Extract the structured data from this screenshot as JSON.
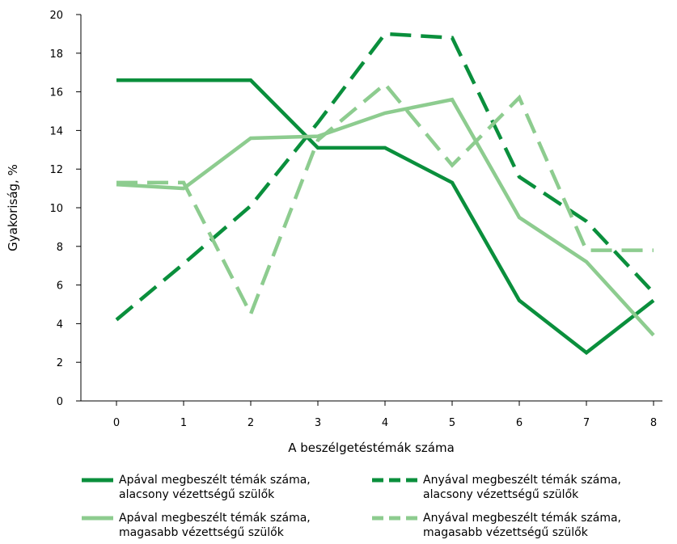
{
  "chart_data": {
    "type": "line",
    "x": [
      0,
      1,
      2,
      3,
      4,
      5,
      6,
      7,
      8
    ],
    "xlabel": "A beszélgetéstémák száma",
    "ylabel": "Gyakoriság, %",
    "ylim": [
      0,
      20
    ],
    "yticks": [
      0,
      2,
      4,
      6,
      8,
      10,
      12,
      14,
      16,
      18,
      20
    ],
    "grid": false,
    "legend_position": "bottom",
    "series": [
      {
        "name_line1": "Apával megbeszélt témák száma,",
        "name_line2": "alacsony vézettségű szülők",
        "values": [
          16.6,
          16.6,
          16.6,
          13.1,
          13.1,
          11.3,
          5.2,
          2.5,
          5.2
        ],
        "color": "#0a8f3c",
        "dash": "solid"
      },
      {
        "name_line1": "Anyával megbeszélt témák száma,",
        "name_line2": "alacsony vézettségű szülők",
        "values": [
          4.2,
          7.1,
          10.1,
          14.4,
          19.0,
          18.8,
          11.6,
          9.3,
          5.6
        ],
        "color": "#0a8f3c",
        "dash": "dashed"
      },
      {
        "name_line1": "Apával megbeszélt témák száma,",
        "name_line2": "magasabb vézettségű szülők",
        "values": [
          11.2,
          11.0,
          13.6,
          13.7,
          14.9,
          15.6,
          9.5,
          7.2,
          3.4
        ],
        "color": "#8dcc8f",
        "dash": "solid"
      },
      {
        "name_line1": "Anyával megbeszélt témák száma,",
        "name_line2": "magasabb vézettségű szülők",
        "values": [
          11.3,
          11.3,
          4.5,
          13.5,
          16.4,
          12.2,
          15.7,
          7.8,
          7.8
        ],
        "color": "#8dcc8f",
        "dash": "dashed"
      }
    ]
  }
}
